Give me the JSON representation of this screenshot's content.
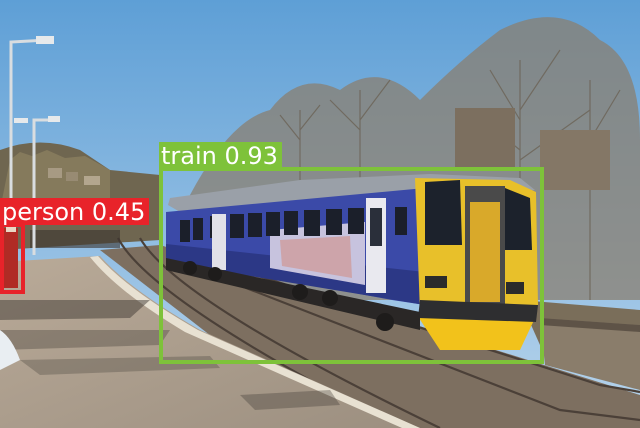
{
  "detections": [
    {
      "class": "train",
      "score": "0.93",
      "color": "#7ec23a"
    },
    {
      "class": "person",
      "score": "0.45",
      "color": "#e8232a"
    }
  ]
}
